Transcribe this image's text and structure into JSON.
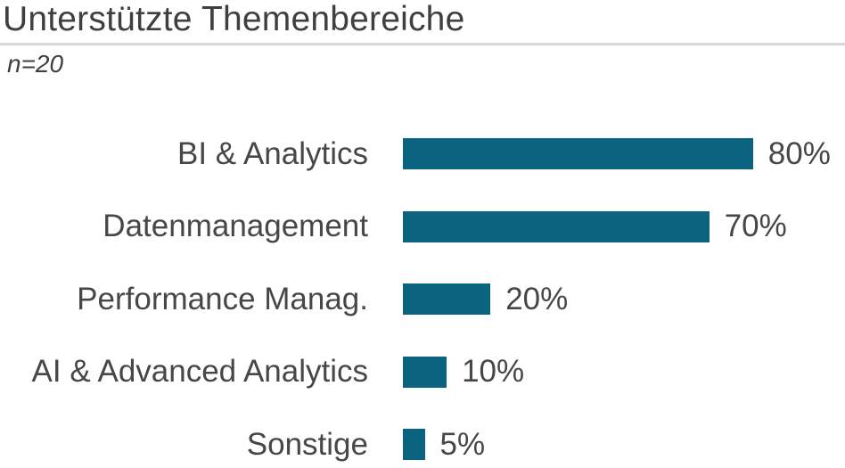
{
  "title": "Unterstützte Themenbereiche",
  "subtitle": "n=20",
  "colors": {
    "bar": "#0a6480",
    "title_text": "#3f3f3f",
    "label_text": "#474747",
    "divider": "#d9d9d9",
    "background": "#ffffff"
  },
  "chart_data": {
    "type": "bar",
    "orientation": "horizontal",
    "title": "Unterstützte Themenbereiche",
    "subtitle": "n=20",
    "sample_size": 20,
    "unit": "%",
    "xlim": [
      0,
      100
    ],
    "grid": false,
    "legend": false,
    "categories": [
      "BI & Analytics",
      "Datenmanagement",
      "Performance Manag.",
      "AI & Advanced Analytics",
      "Sonstige"
    ],
    "values": [
      80,
      70,
      20,
      10,
      5
    ],
    "value_labels": [
      "80%",
      "70%",
      "20%",
      "10%",
      "5%"
    ]
  }
}
